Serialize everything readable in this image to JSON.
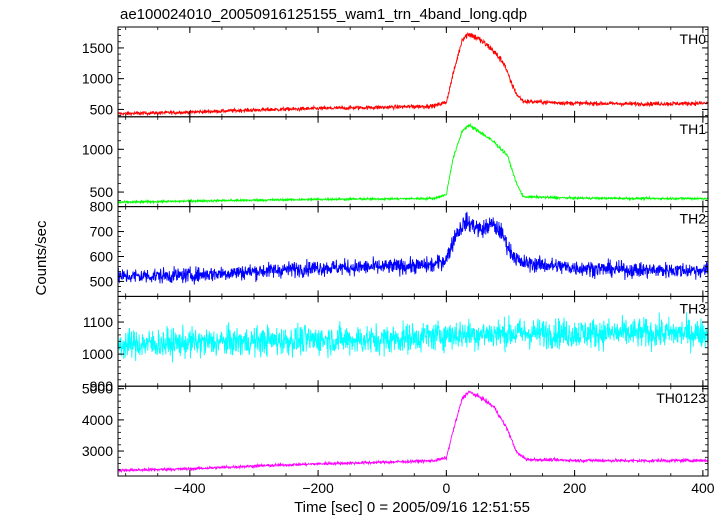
{
  "chart_data": {
    "type": "line",
    "title": "ae100024010_20050916125155_wam1_trn_4band_long.qdp",
    "xlabel": "Time [sec] 0 = 2005/09/16 12:51:55",
    "ylabel": "Counts/sec",
    "xlim": [
      -512,
      408
    ],
    "xticks": [
      -400,
      -200,
      0,
      200,
      400
    ],
    "panels": [
      {
        "name": "TH0",
        "color": "#ff0000",
        "ylim": [
          380,
          1840
        ],
        "yticks": [
          500,
          1000,
          1500
        ],
        "points": [
          [
            -512,
            430
          ],
          [
            -400,
            455
          ],
          [
            -300,
            490
          ],
          [
            -200,
            515
          ],
          [
            -100,
            535
          ],
          [
            -20,
            555
          ],
          [
            0,
            620
          ],
          [
            10,
            1050
          ],
          [
            25,
            1650
          ],
          [
            35,
            1730
          ],
          [
            50,
            1650
          ],
          [
            70,
            1490
          ],
          [
            90,
            1250
          ],
          [
            100,
            960
          ],
          [
            110,
            740
          ],
          [
            120,
            630
          ],
          [
            200,
            600
          ],
          [
            300,
            590
          ],
          [
            408,
            600
          ]
        ],
        "noise": 28
      },
      {
        "name": "TH1",
        "color": "#00ff00",
        "ylim": [
          330,
          1380
        ],
        "yticks": [
          500,
          1000
        ],
        "points": [
          [
            -512,
            380
          ],
          [
            -400,
            395
          ],
          [
            -300,
            405
          ],
          [
            -200,
            415
          ],
          [
            -100,
            420
          ],
          [
            -20,
            425
          ],
          [
            0,
            470
          ],
          [
            10,
            880
          ],
          [
            25,
            1220
          ],
          [
            35,
            1280
          ],
          [
            55,
            1190
          ],
          [
            75,
            1080
          ],
          [
            95,
            930
          ],
          [
            110,
            590
          ],
          [
            120,
            445
          ],
          [
            200,
            430
          ],
          [
            300,
            425
          ],
          [
            408,
            425
          ]
        ],
        "noise": 12
      },
      {
        "name": "TH2",
        "color": "#0000ff",
        "ylim": [
          440,
          800
        ],
        "yticks": [
          500,
          600,
          700,
          800
        ],
        "points": [
          [
            -512,
            520
          ],
          [
            -400,
            525
          ],
          [
            -300,
            540
          ],
          [
            -200,
            555
          ],
          [
            -100,
            558
          ],
          [
            -20,
            565
          ],
          [
            0,
            590
          ],
          [
            15,
            690
          ],
          [
            30,
            740
          ],
          [
            45,
            720
          ],
          [
            55,
            705
          ],
          [
            70,
            730
          ],
          [
            85,
            700
          ],
          [
            100,
            620
          ],
          [
            115,
            575
          ],
          [
            200,
            555
          ],
          [
            300,
            545
          ],
          [
            408,
            545
          ]
        ],
        "noise": 30
      },
      {
        "name": "TH3",
        "color": "#00ffff",
        "ylim": [
          900,
          1180
        ],
        "yticks": [
          900,
          1000,
          1100
        ],
        "points": [
          [
            -512,
            1030
          ],
          [
            -400,
            1035
          ],
          [
            -300,
            1040
          ],
          [
            -200,
            1045
          ],
          [
            -100,
            1045
          ],
          [
            0,
            1060
          ],
          [
            100,
            1065
          ],
          [
            200,
            1065
          ],
          [
            300,
            1065
          ],
          [
            408,
            1065
          ]
        ],
        "noise": 45
      },
      {
        "name": "TH0123",
        "color": "#ff00ff",
        "ylim": [
          2200,
          5080
        ],
        "yticks": [
          3000,
          4000,
          5000
        ],
        "points": [
          [
            -512,
            2380
          ],
          [
            -400,
            2430
          ],
          [
            -300,
            2520
          ],
          [
            -200,
            2590
          ],
          [
            -100,
            2640
          ],
          [
            -20,
            2690
          ],
          [
            0,
            2780
          ],
          [
            10,
            3600
          ],
          [
            25,
            4700
          ],
          [
            35,
            4900
          ],
          [
            55,
            4700
          ],
          [
            75,
            4400
          ],
          [
            95,
            3700
          ],
          [
            110,
            2950
          ],
          [
            125,
            2730
          ],
          [
            200,
            2700
          ],
          [
            300,
            2690
          ],
          [
            408,
            2700
          ]
        ],
        "noise": 45
      }
    ]
  }
}
